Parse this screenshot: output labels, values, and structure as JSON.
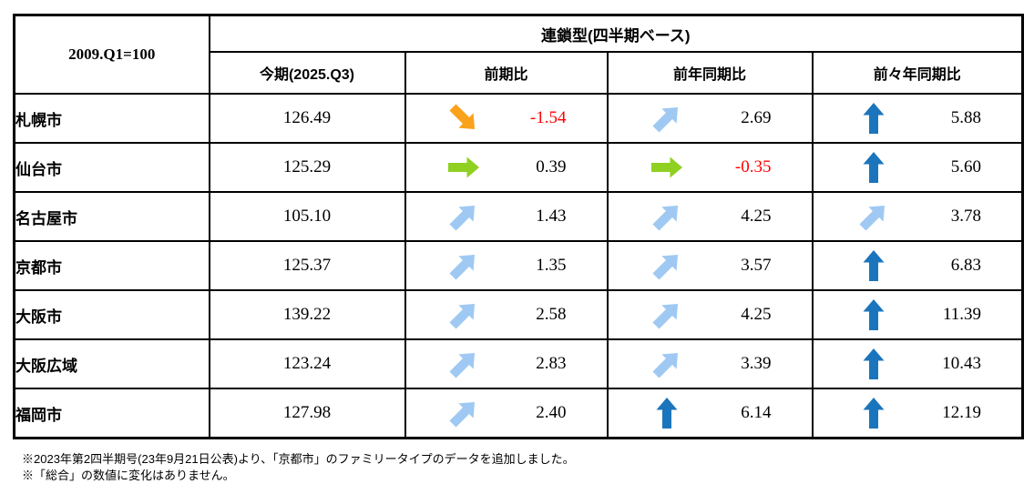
{
  "table": {
    "corner_label": "2009.Q1=100",
    "group_header": "連鎖型(四半期ベース)",
    "columns": [
      "今期(2025.Q3)",
      "前期比",
      "前年同期比",
      "前々年同期比"
    ],
    "rows": [
      {
        "city": "札幌市",
        "current": "126.49",
        "qoq": {
          "value": "-1.54",
          "direction": "down-right",
          "tone": "orange",
          "negative": true
        },
        "yoy": {
          "value": "2.69",
          "direction": "up-right",
          "tone": "lightblue",
          "negative": false
        },
        "yo2y": {
          "value": "5.88",
          "direction": "up",
          "tone": "blue",
          "negative": false
        }
      },
      {
        "city": "仙台市",
        "current": "125.29",
        "qoq": {
          "value": "0.39",
          "direction": "right",
          "tone": "green",
          "negative": false
        },
        "yoy": {
          "value": "-0.35",
          "direction": "right",
          "tone": "green",
          "negative": true
        },
        "yo2y": {
          "value": "5.60",
          "direction": "up",
          "tone": "blue",
          "negative": false
        }
      },
      {
        "city": "名古屋市",
        "current": "105.10",
        "qoq": {
          "value": "1.43",
          "direction": "up-right",
          "tone": "lightblue",
          "negative": false
        },
        "yoy": {
          "value": "4.25",
          "direction": "up-right",
          "tone": "lightblue",
          "negative": false
        },
        "yo2y": {
          "value": "3.78",
          "direction": "up-right",
          "tone": "lightblue",
          "negative": false
        }
      },
      {
        "city": "京都市",
        "current": "125.37",
        "qoq": {
          "value": "1.35",
          "direction": "up-right",
          "tone": "lightblue",
          "negative": false
        },
        "yoy": {
          "value": "3.57",
          "direction": "up-right",
          "tone": "lightblue",
          "negative": false
        },
        "yo2y": {
          "value": "6.83",
          "direction": "up",
          "tone": "blue",
          "negative": false
        }
      },
      {
        "city": "大阪市",
        "current": "139.22",
        "qoq": {
          "value": "2.58",
          "direction": "up-right",
          "tone": "lightblue",
          "negative": false
        },
        "yoy": {
          "value": "4.25",
          "direction": "up-right",
          "tone": "lightblue",
          "negative": false
        },
        "yo2y": {
          "value": "11.39",
          "direction": "up",
          "tone": "blue",
          "negative": false
        }
      },
      {
        "city": "大阪広域",
        "current": "123.24",
        "qoq": {
          "value": "2.83",
          "direction": "up-right",
          "tone": "lightblue",
          "negative": false
        },
        "yoy": {
          "value": "3.39",
          "direction": "up-right",
          "tone": "lightblue",
          "negative": false
        },
        "yo2y": {
          "value": "10.43",
          "direction": "up",
          "tone": "blue",
          "negative": false
        }
      },
      {
        "city": "福岡市",
        "current": "127.98",
        "qoq": {
          "value": "2.40",
          "direction": "up-right",
          "tone": "lightblue",
          "negative": false
        },
        "yoy": {
          "value": "6.14",
          "direction": "up",
          "tone": "blue",
          "negative": false
        },
        "yo2y": {
          "value": "12.19",
          "direction": "up",
          "tone": "blue",
          "negative": false
        }
      }
    ],
    "footnotes": [
      "※2023年第2四半期号(23年9月21日公表)より、「京都市」のファミリータイプのデータを追加しました。",
      "※「総合」の数値に変化はありません。"
    ]
  },
  "colors": {
    "orange": "#FAA21B",
    "green": "#8FD021",
    "lightblue": "#9FC9F2",
    "blue": "#1B75BC",
    "negative_text": "#FF0000"
  }
}
